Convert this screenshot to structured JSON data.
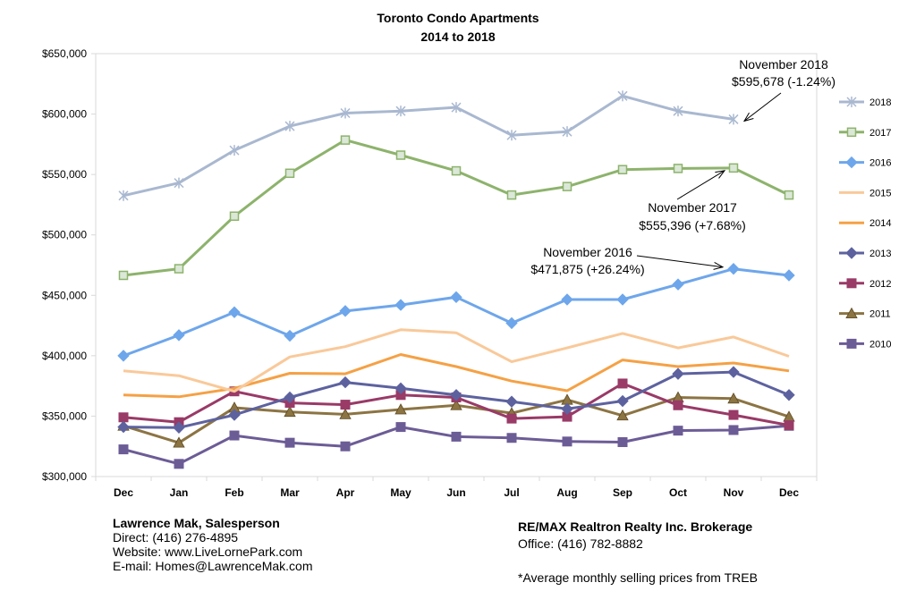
{
  "chart_data": {
    "type": "line",
    "title": "Toronto Condo Apartments",
    "subtitle": "2014 to 2018",
    "categories": [
      "Dec",
      "Jan",
      "Feb",
      "Mar",
      "Apr",
      "May",
      "Jun",
      "Jul",
      "Aug",
      "Sep",
      "Oct",
      "Nov",
      "Dec"
    ],
    "y_ticks": [
      "$300,000",
      "$350,000",
      "$400,000",
      "$450,000",
      "$500,000",
      "$550,000",
      "$600,000",
      "$650,000"
    ],
    "ylim": [
      300000,
      650000
    ],
    "grid": false,
    "legend_position": "right",
    "series": [
      {
        "name": "2018",
        "color": "#a9b8d0",
        "marker": "star",
        "values": [
          532500,
          543000,
          570000,
          590000,
          600800,
          602500,
          605500,
          582500,
          585500,
          615000,
          602500,
          595678,
          null
        ]
      },
      {
        "name": "2017",
        "color": "#8db36c",
        "marker": "square-open",
        "values": [
          466500,
          472000,
          515500,
          551000,
          578500,
          566000,
          553000,
          533000,
          540000,
          554000,
          555000,
          555396,
          533000
        ]
      },
      {
        "name": "2016",
        "color": "#6ea6eb",
        "marker": "diamond",
        "values": [
          400000,
          417000,
          436000,
          416500,
          437000,
          442000,
          448500,
          427000,
          446500,
          446500,
          459000,
          471875,
          466500
        ]
      },
      {
        "name": "2015",
        "color": "#f9c99a",
        "marker": "none",
        "values": [
          387500,
          383500,
          370500,
          399000,
          407500,
          421500,
          419000,
          395000,
          406500,
          418500,
          406500,
          415500,
          399500
        ]
      },
      {
        "name": "2014",
        "color": "#f5a145",
        "marker": "none",
        "values": [
          367500,
          366000,
          373000,
          385500,
          385000,
          401000,
          391000,
          379000,
          371000,
          396500,
          391000,
          394000,
          387500
        ]
      },
      {
        "name": "2013",
        "color": "#5d629f",
        "marker": "diamond",
        "values": [
          341000,
          340500,
          351000,
          365500,
          378000,
          373000,
          367500,
          362000,
          356000,
          362500,
          385000,
          386500,
          367500
        ]
      },
      {
        "name": "2012",
        "color": "#993a67",
        "marker": "square",
        "values": [
          349000,
          345000,
          370500,
          361000,
          359500,
          367500,
          365500,
          348000,
          349500,
          377000,
          359000,
          351000,
          342500
        ]
      },
      {
        "name": "2011",
        "color": "#8c7443",
        "marker": "triangle",
        "values": [
          342000,
          328000,
          357000,
          353500,
          351500,
          355500,
          359000,
          352500,
          363500,
          350500,
          365500,
          364500,
          349500
        ]
      },
      {
        "name": "2010",
        "color": "#6c5c96",
        "marker": "square",
        "values": [
          322500,
          310500,
          334000,
          328000,
          325000,
          341000,
          333000,
          332000,
          329000,
          328500,
          338000,
          338500,
          342000
        ]
      }
    ],
    "annotations": [
      {
        "line1": "November 2018",
        "line2": "$595,678 (-1.24%)"
      },
      {
        "line1": "November 2017",
        "line2": "$555,396 (+7.68%)"
      },
      {
        "line1": "November 2016",
        "line2": "$471,875 (+26.24%)"
      }
    ]
  },
  "footer": {
    "agent_name": "Lawrence Mak, Salesperson",
    "direct": "Direct:  (416) 276-4895",
    "website": "Website:  www.LiveLornePark.com",
    "email": "E-mail:  Homes@LawrenceMak.com",
    "brokerage": "RE/MAX Realtron Realty Inc. Brokerage",
    "office": "Office: (416) 782-8882",
    "note": "*Average monthly selling prices from TREB"
  }
}
